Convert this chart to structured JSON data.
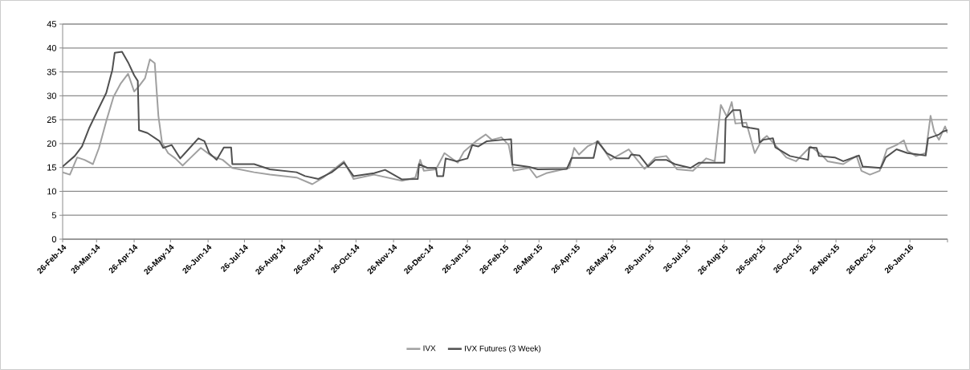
{
  "chart_data": {
    "type": "line",
    "xlim": [
      "2014-02-26",
      "2016-02-26"
    ],
    "ylim": [
      0,
      45
    ],
    "yticks": [
      0,
      5,
      10,
      15,
      20,
      25,
      30,
      35,
      40,
      45
    ],
    "xticks": [
      {
        "value": "2014-02-26",
        "label": "26-Feb-14"
      },
      {
        "value": "2014-03-26",
        "label": "26-Mar-14"
      },
      {
        "value": "2014-04-26",
        "label": "26-Apr-14"
      },
      {
        "value": "2014-05-26",
        "label": "26-May-14"
      },
      {
        "value": "2014-06-26",
        "label": "26-Jun-14"
      },
      {
        "value": "2014-07-26",
        "label": "26-Jul-14"
      },
      {
        "value": "2014-08-26",
        "label": "26-Aug-14"
      },
      {
        "value": "2014-09-26",
        "label": "26-Sep-14"
      },
      {
        "value": "2014-10-26",
        "label": "26-Oct-14"
      },
      {
        "value": "2014-11-26",
        "label": "26-Nov-14"
      },
      {
        "value": "2014-12-26",
        "label": "26-Dec-14"
      },
      {
        "value": "2015-01-26",
        "label": "26-Jan-15"
      },
      {
        "value": "2015-02-26",
        "label": "26-Feb-15"
      },
      {
        "value": "2015-03-26",
        "label": "26-Mar-15"
      },
      {
        "value": "2015-04-26",
        "label": "26-Apr-15"
      },
      {
        "value": "2015-05-26",
        "label": "26-May-15"
      },
      {
        "value": "2015-06-26",
        "label": "26-Jun-15"
      },
      {
        "value": "2015-07-26",
        "label": "26-Jul-15"
      },
      {
        "value": "2015-08-26",
        "label": "26-Aug-15"
      },
      {
        "value": "2015-09-26",
        "label": "26-Sep-15"
      },
      {
        "value": "2015-10-26",
        "label": "26-Oct-15"
      },
      {
        "value": "2015-11-26",
        "label": "26-Nov-15"
      },
      {
        "value": "2015-12-26",
        "label": "26-Dec-15"
      },
      {
        "value": "2016-01-26",
        "label": "26-Jan-16"
      },
      {
        "value": "2016-02-26",
        "label": null
      }
    ],
    "grid": "y",
    "legend": "bottom",
    "marker": "none",
    "line_style": "solid",
    "series": [
      {
        "name": "IVX",
        "color": "#a0a0a0",
        "x": [
          "2014-02-26",
          "2014-03-04",
          "2014-03-10",
          "2014-03-16",
          "2014-03-23",
          "2014-03-28",
          "2014-04-03",
          "2014-04-09",
          "2014-04-15",
          "2014-04-21",
          "2014-04-26",
          "2014-04-30",
          "2014-05-05",
          "2014-05-09",
          "2014-05-13",
          "2014-05-16",
          "2014-05-19",
          "2014-05-24",
          "2014-05-30",
          "2014-06-05",
          "2014-06-11",
          "2014-06-20",
          "2014-06-29",
          "2014-07-08",
          "2014-07-16",
          "2014-08-03",
          "2014-08-16",
          "2014-09-07",
          "2014-09-20",
          "2014-09-29",
          "2014-10-16",
          "2014-10-24",
          "2014-11-10",
          "2014-12-03",
          "2014-12-14",
          "2014-12-18",
          "2014-12-21",
          "2014-12-31",
          "2015-01-07",
          "2015-01-18",
          "2015-01-23",
          "2015-02-02",
          "2015-02-10",
          "2015-02-15",
          "2015-02-23",
          "2015-03-01",
          "2015-03-05",
          "2015-03-18",
          "2015-03-24",
          "2015-04-01",
          "2015-04-20",
          "2015-04-24",
          "2015-04-28",
          "2015-05-05",
          "2015-05-14",
          "2015-05-24",
          "2015-06-08",
          "2015-06-21",
          "2015-06-30",
          "2015-07-09",
          "2015-07-18",
          "2015-07-31",
          "2015-08-11",
          "2015-08-18",
          "2015-08-23",
          "2015-08-28",
          "2015-09-01",
          "2015-09-04",
          "2015-09-13",
          "2015-09-20",
          "2015-09-26",
          "2015-09-30",
          "2015-10-05",
          "2015-10-16",
          "2015-10-24",
          "2015-11-05",
          "2015-11-14",
          "2015-11-19",
          "2015-12-02",
          "2015-12-13",
          "2015-12-17",
          "2015-12-24",
          "2016-01-01",
          "2016-01-07",
          "2016-01-15",
          "2016-01-21",
          "2016-01-24",
          "2016-01-31",
          "2016-02-08",
          "2016-02-12",
          "2016-02-15",
          "2016-02-19",
          "2016-02-24",
          "2016-02-26"
        ],
        "values": [
          14,
          13.5,
          17.1,
          16.6,
          15.7,
          19.1,
          24.7,
          29.8,
          32.6,
          34.6,
          30.9,
          32,
          33.7,
          37.6,
          36.8,
          25.8,
          20.2,
          18,
          16.9,
          15.4,
          16.9,
          19.1,
          17.4,
          16.6,
          14.9,
          14,
          13.5,
          12.9,
          11.5,
          12.9,
          16.3,
          12.6,
          13.5,
          12.2,
          12.9,
          16.6,
          14.3,
          14.6,
          18,
          16,
          18.3,
          20.5,
          21.9,
          20.8,
          21.3,
          19.7,
          14.3,
          14.9,
          12.9,
          13.8,
          14.9,
          19.1,
          17.7,
          19.4,
          20.5,
          16.6,
          18.8,
          14.7,
          17.1,
          17.4,
          14.6,
          14.3,
          16.9,
          16.3,
          28.1,
          25.6,
          28.7,
          24.2,
          24.4,
          18,
          20.8,
          21.6,
          20.2,
          17.1,
          16.3,
          19.4,
          17.7,
          16.3,
          15.7,
          17.4,
          14.3,
          13.5,
          14.3,
          18.8,
          19.7,
          20.7,
          18.5,
          17.4,
          18,
          25.8,
          22.5,
          20.8,
          23.6,
          22.2
        ]
      },
      {
        "name": "IVX Futures (3 Week)",
        "color": "#505050",
        "x": [
          "2014-02-26",
          "2014-03-08",
          "2014-03-14",
          "2014-03-20",
          "2014-03-27",
          "2014-04-03",
          "2014-04-08",
          "2014-04-10",
          "2014-04-16",
          "2014-04-21",
          "2014-04-26",
          "2014-04-29",
          "2014-04-30",
          "2014-05-07",
          "2014-05-17",
          "2014-05-20",
          "2014-05-27",
          "2014-06-03",
          "2014-06-07",
          "2014-06-18",
          "2014-06-23",
          "2014-06-27",
          "2014-07-03",
          "2014-07-09",
          "2014-07-15",
          "2014-07-16",
          "2014-08-03",
          "2014-08-16",
          "2014-09-07",
          "2014-09-14",
          "2014-09-25",
          "2014-10-06",
          "2014-10-16",
          "2014-10-24",
          "2014-11-10",
          "2014-11-19",
          "2014-12-03",
          "2014-12-16",
          "2014-12-17",
          "2014-12-24",
          "2014-12-31",
          "2015-01-01",
          "2015-01-06",
          "2015-01-08",
          "2015-01-17",
          "2015-01-26",
          "2015-01-30",
          "2015-02-04",
          "2015-02-11",
          "2015-02-24",
          "2015-03-03",
          "2015-03-04",
          "2015-03-18",
          "2015-03-25",
          "2015-04-18",
          "2015-04-22",
          "2015-05-10",
          "2015-05-13",
          "2015-05-21",
          "2015-05-29",
          "2015-06-08",
          "2015-06-10",
          "2015-06-17",
          "2015-06-24",
          "2015-06-30",
          "2015-07-09",
          "2015-07-16",
          "2015-07-29",
          "2015-08-05",
          "2015-08-26",
          "2015-08-27",
          "2015-09-02",
          "2015-09-08",
          "2015-09-10",
          "2015-09-16",
          "2015-09-23",
          "2015-09-24",
          "2015-09-27",
          "2015-10-05",
          "2015-10-07",
          "2015-10-19",
          "2015-11-03",
          "2015-11-04",
          "2015-11-10",
          "2015-11-12",
          "2015-11-25",
          "2015-12-02",
          "2015-12-15",
          "2015-12-18",
          "2016-01-02",
          "2016-01-06",
          "2016-01-15",
          "2016-01-24",
          "2016-02-08",
          "2016-02-10",
          "2016-02-19",
          "2016-02-22",
          "2016-02-26"
        ],
        "values": [
          15.2,
          17.4,
          19.4,
          23.3,
          27,
          30.6,
          35.4,
          39,
          39.2,
          37,
          34.3,
          33.1,
          22.8,
          22.2,
          20.5,
          19.1,
          19.7,
          16.9,
          18,
          21.1,
          20.5,
          18,
          16.6,
          19.2,
          19.2,
          15.7,
          15.7,
          14.6,
          14,
          13.2,
          12.6,
          14,
          16,
          13.2,
          13.8,
          14.5,
          12.5,
          12.6,
          15.7,
          14.9,
          14.9,
          13.2,
          13.2,
          16.9,
          16.3,
          16.9,
          19.7,
          19.4,
          20.5,
          20.8,
          20.9,
          15.6,
          15.1,
          14.6,
          14.7,
          17,
          17,
          20.5,
          18,
          16.9,
          16.9,
          17.7,
          17.5,
          15.2,
          16.6,
          16.6,
          15.7,
          14.9,
          16,
          16,
          25.3,
          27,
          27,
          23.6,
          23.3,
          23,
          20.2,
          20.8,
          21.1,
          19.2,
          17.4,
          16.6,
          19.2,
          19.1,
          17.4,
          17.1,
          16.3,
          17.5,
          15.2,
          14.9,
          17.1,
          18.8,
          18,
          17.5,
          21.1,
          21.9,
          22.5,
          22.8
        ]
      }
    ]
  }
}
